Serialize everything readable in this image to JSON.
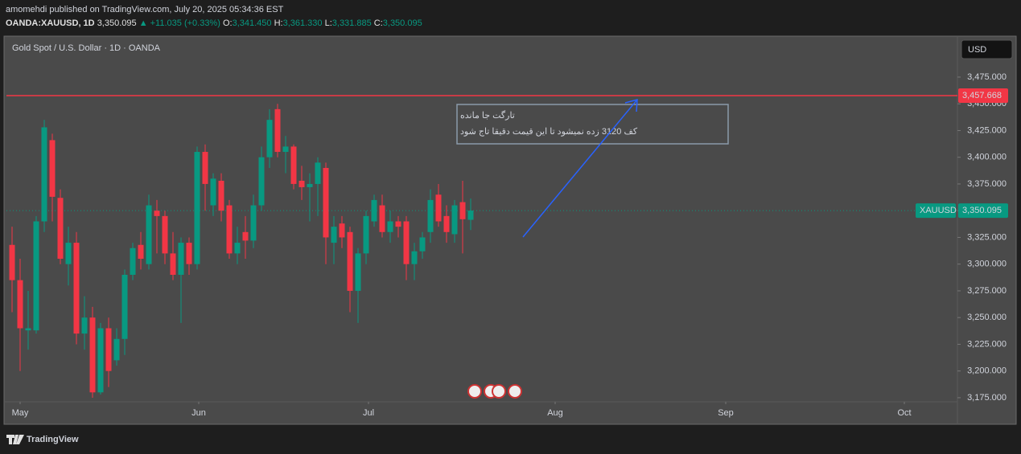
{
  "header": {
    "publisher": "amomehdi published on TradingView.com, July 20, 2025 05:34:36 EST",
    "symbol": "OANDA:XAUUSD, 1D",
    "price": "3,350.095",
    "change": "▲ +11.035 (+0.33%)",
    "ohlc": [
      {
        "key": "O:",
        "value": "3,341.450"
      },
      {
        "key": "H:",
        "value": "3,361.330"
      },
      {
        "key": "L:",
        "value": "3,331.885"
      },
      {
        "key": "C:",
        "value": "3,350.095"
      }
    ]
  },
  "chart_data": {
    "type": "candlestick",
    "title": "Gold Spot / U.S. Dollar · 1D · OANDA",
    "currency": "USD",
    "categories": [
      null,
      null,
      null,
      null,
      null,
      null,
      null,
      null,
      null,
      null,
      null,
      null,
      null,
      null,
      null,
      null,
      null,
      null,
      null,
      null,
      null,
      null,
      null,
      null,
      null,
      null,
      null,
      null,
      null,
      null,
      null,
      null,
      null,
      null,
      null,
      null,
      null,
      null,
      null,
      null,
      null,
      null,
      null,
      null,
      null,
      null,
      null,
      null,
      null,
      null,
      null,
      null,
      null,
      null,
      null,
      null,
      null,
      null
    ],
    "open": [
      3318,
      3285,
      3238,
      3238,
      3340,
      3416,
      3362,
      3300,
      3320,
      3235,
      3250,
      3180,
      3240,
      3210,
      3230,
      3290,
      3318,
      3300,
      3350,
      3345,
      3310,
      3290,
      3320,
      3300,
      3405,
      3355,
      3378,
      3355,
      3310,
      3330,
      3322,
      3355,
      3400,
      3445,
      3405,
      3410,
      3378,
      3372,
      3375,
      3390,
      3320,
      3338,
      3330,
      3275,
      3310,
      3340,
      3355,
      3330,
      3340,
      3340,
      3300,
      3312,
      3330,
      3365,
      3345,
      3328,
      3358,
      3341.45
    ],
    "high": [
      3335,
      3305,
      3275,
      3345,
      3435,
      3422,
      3370,
      3335,
      3330,
      3270,
      3260,
      3245,
      3250,
      3240,
      3295,
      3320,
      3330,
      3365,
      3360,
      3350,
      3330,
      3325,
      3325,
      3410,
      3412,
      3385,
      3385,
      3360,
      3335,
      3345,
      3365,
      3410,
      3445,
      3450,
      3420,
      3412,
      3392,
      3385,
      3400,
      3395,
      3345,
      3345,
      3335,
      3315,
      3350,
      3365,
      3365,
      3350,
      3345,
      3345,
      3320,
      3330,
      3370,
      3375,
      3355,
      3360,
      3378,
      3361.33
    ],
    "low": [
      3255,
      3200,
      3220,
      3235,
      3330,
      3340,
      3300,
      3280,
      3225,
      3220,
      3175,
      3178,
      3185,
      3205,
      3215,
      3285,
      3295,
      3295,
      3310,
      3300,
      3285,
      3245,
      3290,
      3295,
      3350,
      3345,
      3340,
      3305,
      3300,
      3305,
      3315,
      3350,
      3390,
      3400,
      3385,
      3370,
      3360,
      3340,
      3345,
      3300,
      3300,
      3315,
      3255,
      3245,
      3300,
      3335,
      3325,
      3320,
      3325,
      3285,
      3285,
      3305,
      3320,
      3335,
      3320,
      3320,
      3310,
      3331.885
    ],
    "close": [
      3285,
      3240,
      3240,
      3340,
      3428,
      3363,
      3305,
      3320,
      3235,
      3250,
      3180,
      3240,
      3200,
      3230,
      3290,
      3315,
      3305,
      3355,
      3345,
      3310,
      3290,
      3320,
      3300,
      3405,
      3375,
      3380,
      3350,
      3310,
      3320,
      3322,
      3355,
      3400,
      3435,
      3405,
      3410,
      3375,
      3372,
      3375,
      3395,
      3325,
      3335,
      3325,
      3275,
      3310,
      3345,
      3360,
      3330,
      3340,
      3335,
      3300,
      3312,
      3325,
      3360,
      3340,
      3330,
      3355,
      3342,
      3350.095
    ],
    "up_color": "#089981",
    "down_color": "#f23645",
    "ylim": [
      3171.2,
      3513.3
    ],
    "yticks": [
      {
        "value": 3175,
        "label": "3,175.000"
      },
      {
        "value": 3200,
        "label": "3,200.000"
      },
      {
        "value": 3225,
        "label": "3,225.000"
      },
      {
        "value": 3250,
        "label": "3,250.000"
      },
      {
        "value": 3275,
        "label": "3,275.000"
      },
      {
        "value": 3300,
        "label": "3,300.000"
      },
      {
        "value": 3325,
        "label": "3,325.000"
      },
      {
        "value": 3350,
        "label": "3,350.000"
      },
      {
        "value": 3375,
        "label": "3,375.000"
      },
      {
        "value": 3400,
        "label": "3,400.000"
      },
      {
        "value": 3425,
        "label": "3,425.000"
      },
      {
        "value": 3450,
        "label": "3,450.000"
      },
      {
        "value": 3475,
        "label": "3,475.000"
      }
    ],
    "xlim": [
      -0.7,
      117.5
    ],
    "xticks": [
      {
        "value": 1,
        "label": "May"
      },
      {
        "value": 23.2,
        "label": "Jun"
      },
      {
        "value": 44.3,
        "label": "Jul"
      },
      {
        "value": 67.5,
        "label": "Aug"
      },
      {
        "value": 88.7,
        "label": "Sep"
      },
      {
        "value": 110.9,
        "label": "Oct"
      }
    ],
    "grid": false,
    "horizontal_line": {
      "value": 3457.668,
      "label": "3,457.668",
      "color": "#f23645"
    },
    "last_price": {
      "name": "XAUUSD",
      "value": 3350.095,
      "label": "3,350.095",
      "color": "#089981"
    },
    "annotation": [
      "تارگت جا مانده",
      "کف 3120 زده نمیشود تا این قیمت دقیقا تاج شود"
    ]
  },
  "footer": {
    "brand": "TradingView"
  }
}
